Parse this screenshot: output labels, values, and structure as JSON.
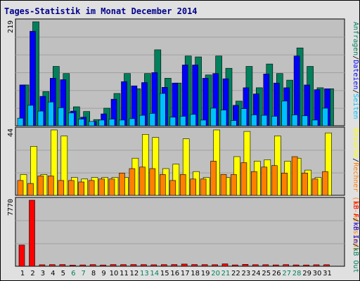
{
  "title": "Tages-Statistik im Monat December 2014",
  "colors": {
    "hits": "#00805c",
    "files": "#0000ff",
    "pages": "#00c0ff",
    "visits": "#ffff00",
    "sites": "#ff8000",
    "kb_f": "#ff0000",
    "kb_in": "#0000ff",
    "kb_out": "#00805c",
    "weekend": "#00805c",
    "weekday": "#000000"
  },
  "legends": {
    "top": [
      {
        "text": "Anfragen",
        "color": "#00805c"
      },
      {
        "text": "/",
        "color": "#000000"
      },
      {
        "text": "Dateien",
        "color": "#0000ff"
      },
      {
        "text": "/",
        "color": "#000000"
      },
      {
        "text": "Seiten",
        "color": "#00c0ff"
      }
    ],
    "middle": [
      {
        "text": "Besuche",
        "color": "#ffff00"
      },
      {
        "text": "/",
        "color": "#000000"
      },
      {
        "text": "Rechner (IP-Adressen)",
        "color": "#ff8000"
      }
    ],
    "bottom": [
      {
        "text": "kB F",
        "color": "#ff0000"
      },
      {
        "text": "/",
        "color": "#000000"
      },
      {
        "text": "kB In",
        "color": "#0000ff"
      },
      {
        "text": "/",
        "color": "#000000"
      },
      {
        "text": "kB Out",
        "color": "#00805c"
      }
    ]
  },
  "chart_data": {
    "type": "bar",
    "categories": [
      "1",
      "2",
      "3",
      "4",
      "5",
      "6",
      "7",
      "8",
      "9",
      "10",
      "11",
      "12",
      "13",
      "14",
      "15",
      "16",
      "17",
      "18",
      "19",
      "20",
      "21",
      "22",
      "23",
      "24",
      "25",
      "26",
      "27",
      "28",
      "29",
      "30",
      "31"
    ],
    "weekend_days": [
      "6",
      "7",
      "13",
      "14",
      "20",
      "21",
      "27",
      "28"
    ],
    "panels": [
      {
        "name": "hits-files-pages",
        "ymax_label": "219",
        "ymax": 219,
        "series": [
          {
            "key": "hits",
            "values": [
              86,
              219,
              72,
              125,
              110,
              40,
              30,
              13,
              37,
              68,
              110,
              78,
              110,
              160,
              100,
              90,
              147,
              145,
              107,
              147,
              121,
              52,
              125,
              80,
              130,
              110,
              96,
              164,
              125,
              80,
              78
            ]
          },
          {
            "key": "files",
            "values": [
              86,
              199,
              62,
              100,
              97,
              31,
              18,
              9,
              25,
              56,
              93,
              84,
              91,
              112,
              81,
              90,
              128,
              128,
              100,
              110,
              99,
              43,
              80,
              67,
              109,
              90,
              80,
              147,
              86,
              76,
              78
            ]
          },
          {
            "key": "pages",
            "values": [
              16,
              43,
              31,
              50,
              38,
              27,
              14,
              9,
              12,
              14,
              12,
              15,
              22,
              26,
              68,
              18,
              20,
              24,
              12,
              37,
              33,
              11,
              36,
              23,
              22,
              20,
              52,
              23,
              21,
              12,
              37
            ]
          }
        ]
      },
      {
        "name": "visits-sites",
        "ymax_label": "44",
        "ymax": 44,
        "series": [
          {
            "key": "visits",
            "values": [
              14,
              33,
              14,
              44,
              40,
              12,
              11,
              12,
              12,
              12,
              12,
              25,
              41,
              39,
              18,
              21,
              38,
              16,
              12,
              44,
              12,
              26,
              43,
              23,
              24,
              40,
              23,
              25,
              17,
              12,
              42
            ]
          },
          {
            "key": "sites",
            "values": [
              10,
              8,
              13,
              13,
              10,
              10,
              9,
              10,
              11,
              11,
              15,
              18,
              19,
              18,
              14,
              10,
              14,
              11,
              11,
              23,
              14,
              14,
              22,
              16,
              19,
              20,
              15,
              26,
              15,
              11,
              16
            ]
          }
        ]
      },
      {
        "name": "kb-f-in-out",
        "ymax_label": "7770",
        "ymax": 7770,
        "series": [
          {
            "key": "kb_f",
            "values": [
              2500,
              7770,
              170,
              190,
              200,
              130,
              160,
              190,
              150,
              200,
              190,
              200,
              190,
              170,
              190,
              200,
              260,
              200,
              190,
              180,
              280,
              160,
              220,
              180,
              180,
              160,
              190,
              160,
              150,
              170,
              180
            ]
          }
        ]
      }
    ]
  }
}
